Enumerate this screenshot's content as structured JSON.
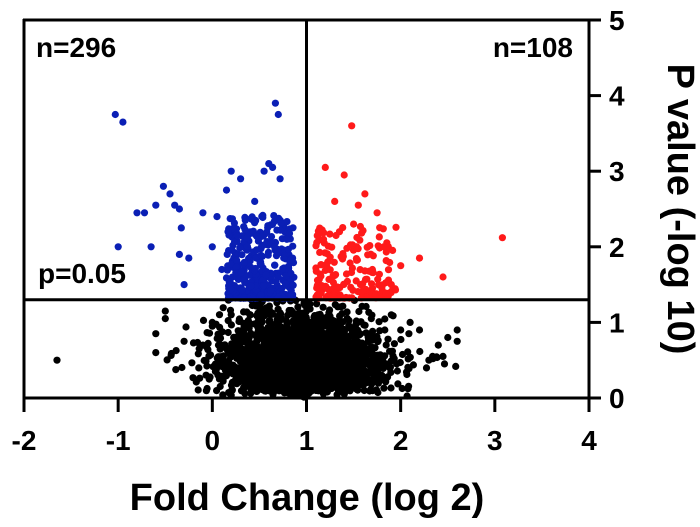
{
  "chart_data": {
    "type": "scatter",
    "title": "",
    "xlabel": "Fold Change (log 2)",
    "ylabel": "P value (-log 10)",
    "xlim": [
      -2,
      4
    ],
    "ylim": [
      0,
      5
    ],
    "x_ticks": [
      "-2",
      "-1",
      "0",
      "1",
      "2",
      "3",
      "4"
    ],
    "y_ticks": [
      "0",
      "1",
      "2",
      "3",
      "4",
      "5"
    ],
    "y_axis_position": "right",
    "grid": false,
    "legend": "none",
    "threshold_lines": {
      "x": 1,
      "y": 1.3
    },
    "annotations": {
      "down_count": "n=296",
      "up_count": "n=108",
      "p_threshold": "p=0.05"
    },
    "colors": {
      "down": "#0a1fb5",
      "up": "#ff1a1a",
      "not_significant": "#000000"
    },
    "series": [
      {
        "group": "down",
        "color": "#0a1fb5",
        "points": [
          [
            -1.03,
            3.75
          ],
          [
            -0.95,
            3.65
          ],
          [
            0.67,
            3.9
          ],
          [
            0.7,
            3.75
          ],
          [
            -0.52,
            2.8
          ],
          [
            -0.45,
            2.7
          ],
          [
            -0.6,
            2.55
          ],
          [
            -0.8,
            2.45
          ],
          [
            -0.72,
            2.45
          ],
          [
            -0.35,
            2.5
          ],
          [
            -0.4,
            2.55
          ],
          [
            -0.33,
            2.25
          ],
          [
            -1.0,
            2.0
          ],
          [
            -0.65,
            2.0
          ],
          [
            -0.35,
            1.9
          ],
          [
            -0.25,
            1.85
          ],
          [
            -0.1,
            2.45
          ],
          [
            0.05,
            2.4
          ],
          [
            0.0,
            2.0
          ],
          [
            0.1,
            1.7
          ],
          [
            -0.3,
            1.5
          ],
          [
            0.55,
            3.0
          ],
          [
            0.6,
            3.1
          ],
          [
            0.2,
            3.0
          ],
          [
            0.45,
            2.6
          ],
          [
            0.15,
            2.75
          ],
          [
            0.3,
            2.9
          ],
          [
            0.64,
            3.05
          ],
          [
            0.72,
            2.9
          ],
          [
            0.35,
            2.35
          ]
        ]
      },
      {
        "group": "up",
        "color": "#ff1a1a",
        "points": [
          [
            1.48,
            3.6
          ],
          [
            1.4,
            2.95
          ],
          [
            1.2,
            3.05
          ],
          [
            1.55,
            2.55
          ],
          [
            1.75,
            2.45
          ],
          [
            1.5,
            2.3
          ],
          [
            1.82,
            2.0
          ],
          [
            2.0,
            1.75
          ],
          [
            2.2,
            1.85
          ],
          [
            2.45,
            1.6
          ],
          [
            3.08,
            2.12
          ],
          [
            1.3,
            2.6
          ],
          [
            1.62,
            2.7
          ],
          [
            1.35,
            2.2
          ],
          [
            1.9,
            1.5
          ],
          [
            1.7,
            1.7
          ]
        ]
      },
      {
        "group": "not_significant",
        "color": "#000000",
        "points": [
          [
            -1.65,
            0.5
          ],
          [
            -0.6,
            0.6
          ],
          [
            -0.6,
            0.85
          ],
          [
            -0.5,
            1.05
          ],
          [
            -0.5,
            1.15
          ],
          [
            -0.3,
            0.75
          ],
          [
            -0.1,
            0.7
          ],
          [
            0.0,
            0.95
          ],
          [
            2.0,
            0.9
          ],
          [
            2.2,
            0.9
          ],
          [
            2.4,
            0.7
          ],
          [
            2.5,
            0.8
          ],
          [
            2.6,
            0.75
          ],
          [
            2.45,
            0.55
          ],
          [
            2.3,
            0.5
          ],
          [
            0.0,
            1.0
          ],
          [
            0.2,
            1.1
          ],
          [
            1.9,
            1.1
          ],
          [
            2.1,
            1.0
          ],
          [
            2.6,
            0.9
          ]
        ]
      }
    ]
  }
}
